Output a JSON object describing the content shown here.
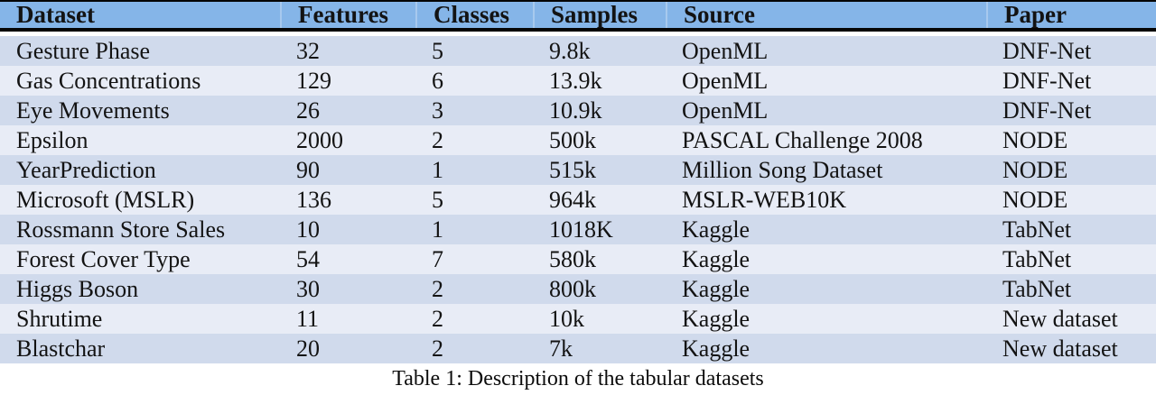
{
  "table": {
    "columns": [
      "Dataset",
      "Features",
      "Classes",
      "Samples",
      "Source",
      "Paper"
    ],
    "rows": [
      [
        "Gesture Phase",
        "32",
        "5",
        "9.8k",
        "OpenML",
        "DNF-Net"
      ],
      [
        "Gas Concentrations",
        "129",
        "6",
        "13.9k",
        "OpenML",
        "DNF-Net"
      ],
      [
        "Eye Movements",
        "26",
        "3",
        "10.9k",
        "OpenML",
        "DNF-Net"
      ],
      [
        "Epsilon",
        "2000",
        "2",
        "500k",
        "PASCAL Challenge 2008",
        "NODE"
      ],
      [
        "YearPrediction",
        "90",
        "1",
        "515k",
        "Million Song Dataset",
        "NODE"
      ],
      [
        "Microsoft (MSLR)",
        "136",
        "5",
        "964k",
        "MSLR-WEB10K",
        "NODE"
      ],
      [
        "Rossmann Store Sales",
        "10",
        "1",
        "1018K",
        "Kaggle",
        "TabNet"
      ],
      [
        "Forest Cover Type",
        "54",
        "7",
        "580k",
        "Kaggle",
        "TabNet"
      ],
      [
        "Higgs Boson",
        "30",
        "2",
        "800k",
        "Kaggle",
        "TabNet"
      ],
      [
        "Shrutime",
        "11",
        "2",
        "10k",
        "Kaggle",
        "New dataset"
      ],
      [
        "Blastchar",
        "20",
        "2",
        "7k",
        "Kaggle",
        "New dataset"
      ]
    ],
    "caption": "Table 1: Description of the tabular datasets"
  },
  "colors": {
    "header_bg": "#85b5e8",
    "row_odd_bg": "#d0daec",
    "row_even_bg": "#e8ecf6",
    "rule": "#050505"
  }
}
